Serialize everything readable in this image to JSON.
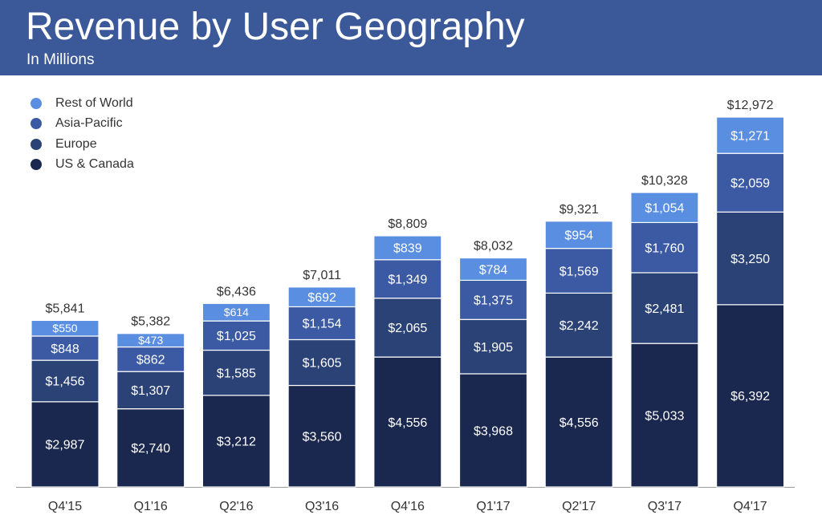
{
  "header": {
    "title": "Revenue by User Geography",
    "subtitle": "In Millions"
  },
  "colors": {
    "header_bg": "#3b5998",
    "us_canada": "#1a2850",
    "europe": "#2b4277",
    "asia_pacific": "#3b5aa3",
    "rest_of_world": "#5a8ee0",
    "label_text": "#ffffff",
    "total_text": "#333333",
    "axis_text": "#333333"
  },
  "chart_data": {
    "type": "bar",
    "stacked": true,
    "title": "Revenue by User Geography",
    "subtitle": "In Millions",
    "xlabel": "",
    "ylabel": "",
    "legend_position": "top-left",
    "ylim": [
      0,
      14000
    ],
    "categories": [
      "Q4'15",
      "Q1'16",
      "Q2'16",
      "Q3'16",
      "Q4'16",
      "Q1'17",
      "Q2'17",
      "Q3'17",
      "Q4'17"
    ],
    "series": [
      {
        "name": "US & Canada",
        "color_key": "us_canada",
        "values": [
          2987,
          2740,
          3212,
          3560,
          4556,
          3968,
          4556,
          5033,
          6392
        ],
        "labels": [
          "$2,987",
          "$2,740",
          "$3,212",
          "$3,560",
          "$4,556",
          "$3,968",
          "$4,556",
          "$5,033",
          "$6,392"
        ]
      },
      {
        "name": "Europe",
        "color_key": "europe",
        "values": [
          1456,
          1307,
          1585,
          1605,
          2065,
          1905,
          2242,
          2481,
          3250
        ],
        "labels": [
          "$1,456",
          "$1,307",
          "$1,585",
          "$1,605",
          "$2,065",
          "$1,905",
          "$2,242",
          "$2,481",
          "$3,250"
        ]
      },
      {
        "name": "Asia-Pacific",
        "color_key": "asia_pacific",
        "values": [
          848,
          862,
          1025,
          1154,
          1349,
          1375,
          1569,
          1760,
          2059
        ],
        "labels": [
          "$848",
          "$862",
          "$1,025",
          "$1,154",
          "$1,349",
          "$1,375",
          "$1,569",
          "$1,760",
          "$2,059"
        ]
      },
      {
        "name": "Rest of World",
        "color_key": "rest_of_world",
        "values": [
          550,
          473,
          614,
          692,
          839,
          784,
          954,
          1054,
          1271
        ],
        "labels": [
          "$550",
          "$473",
          "$614",
          "$692",
          "$839",
          "$784",
          "$954",
          "$1,054",
          "$1,271"
        ]
      }
    ],
    "totals": [
      5841,
      5382,
      6436,
      7011,
      8809,
      8032,
      9321,
      10328,
      12972
    ],
    "total_labels": [
      "$5,841",
      "$5,382",
      "$6,436",
      "$7,011",
      "$8,809",
      "$8,032",
      "$9,321",
      "$10,328",
      "$12,972"
    ],
    "legend_order": [
      "Rest of World",
      "Asia-Pacific",
      "Europe",
      "US & Canada"
    ]
  }
}
